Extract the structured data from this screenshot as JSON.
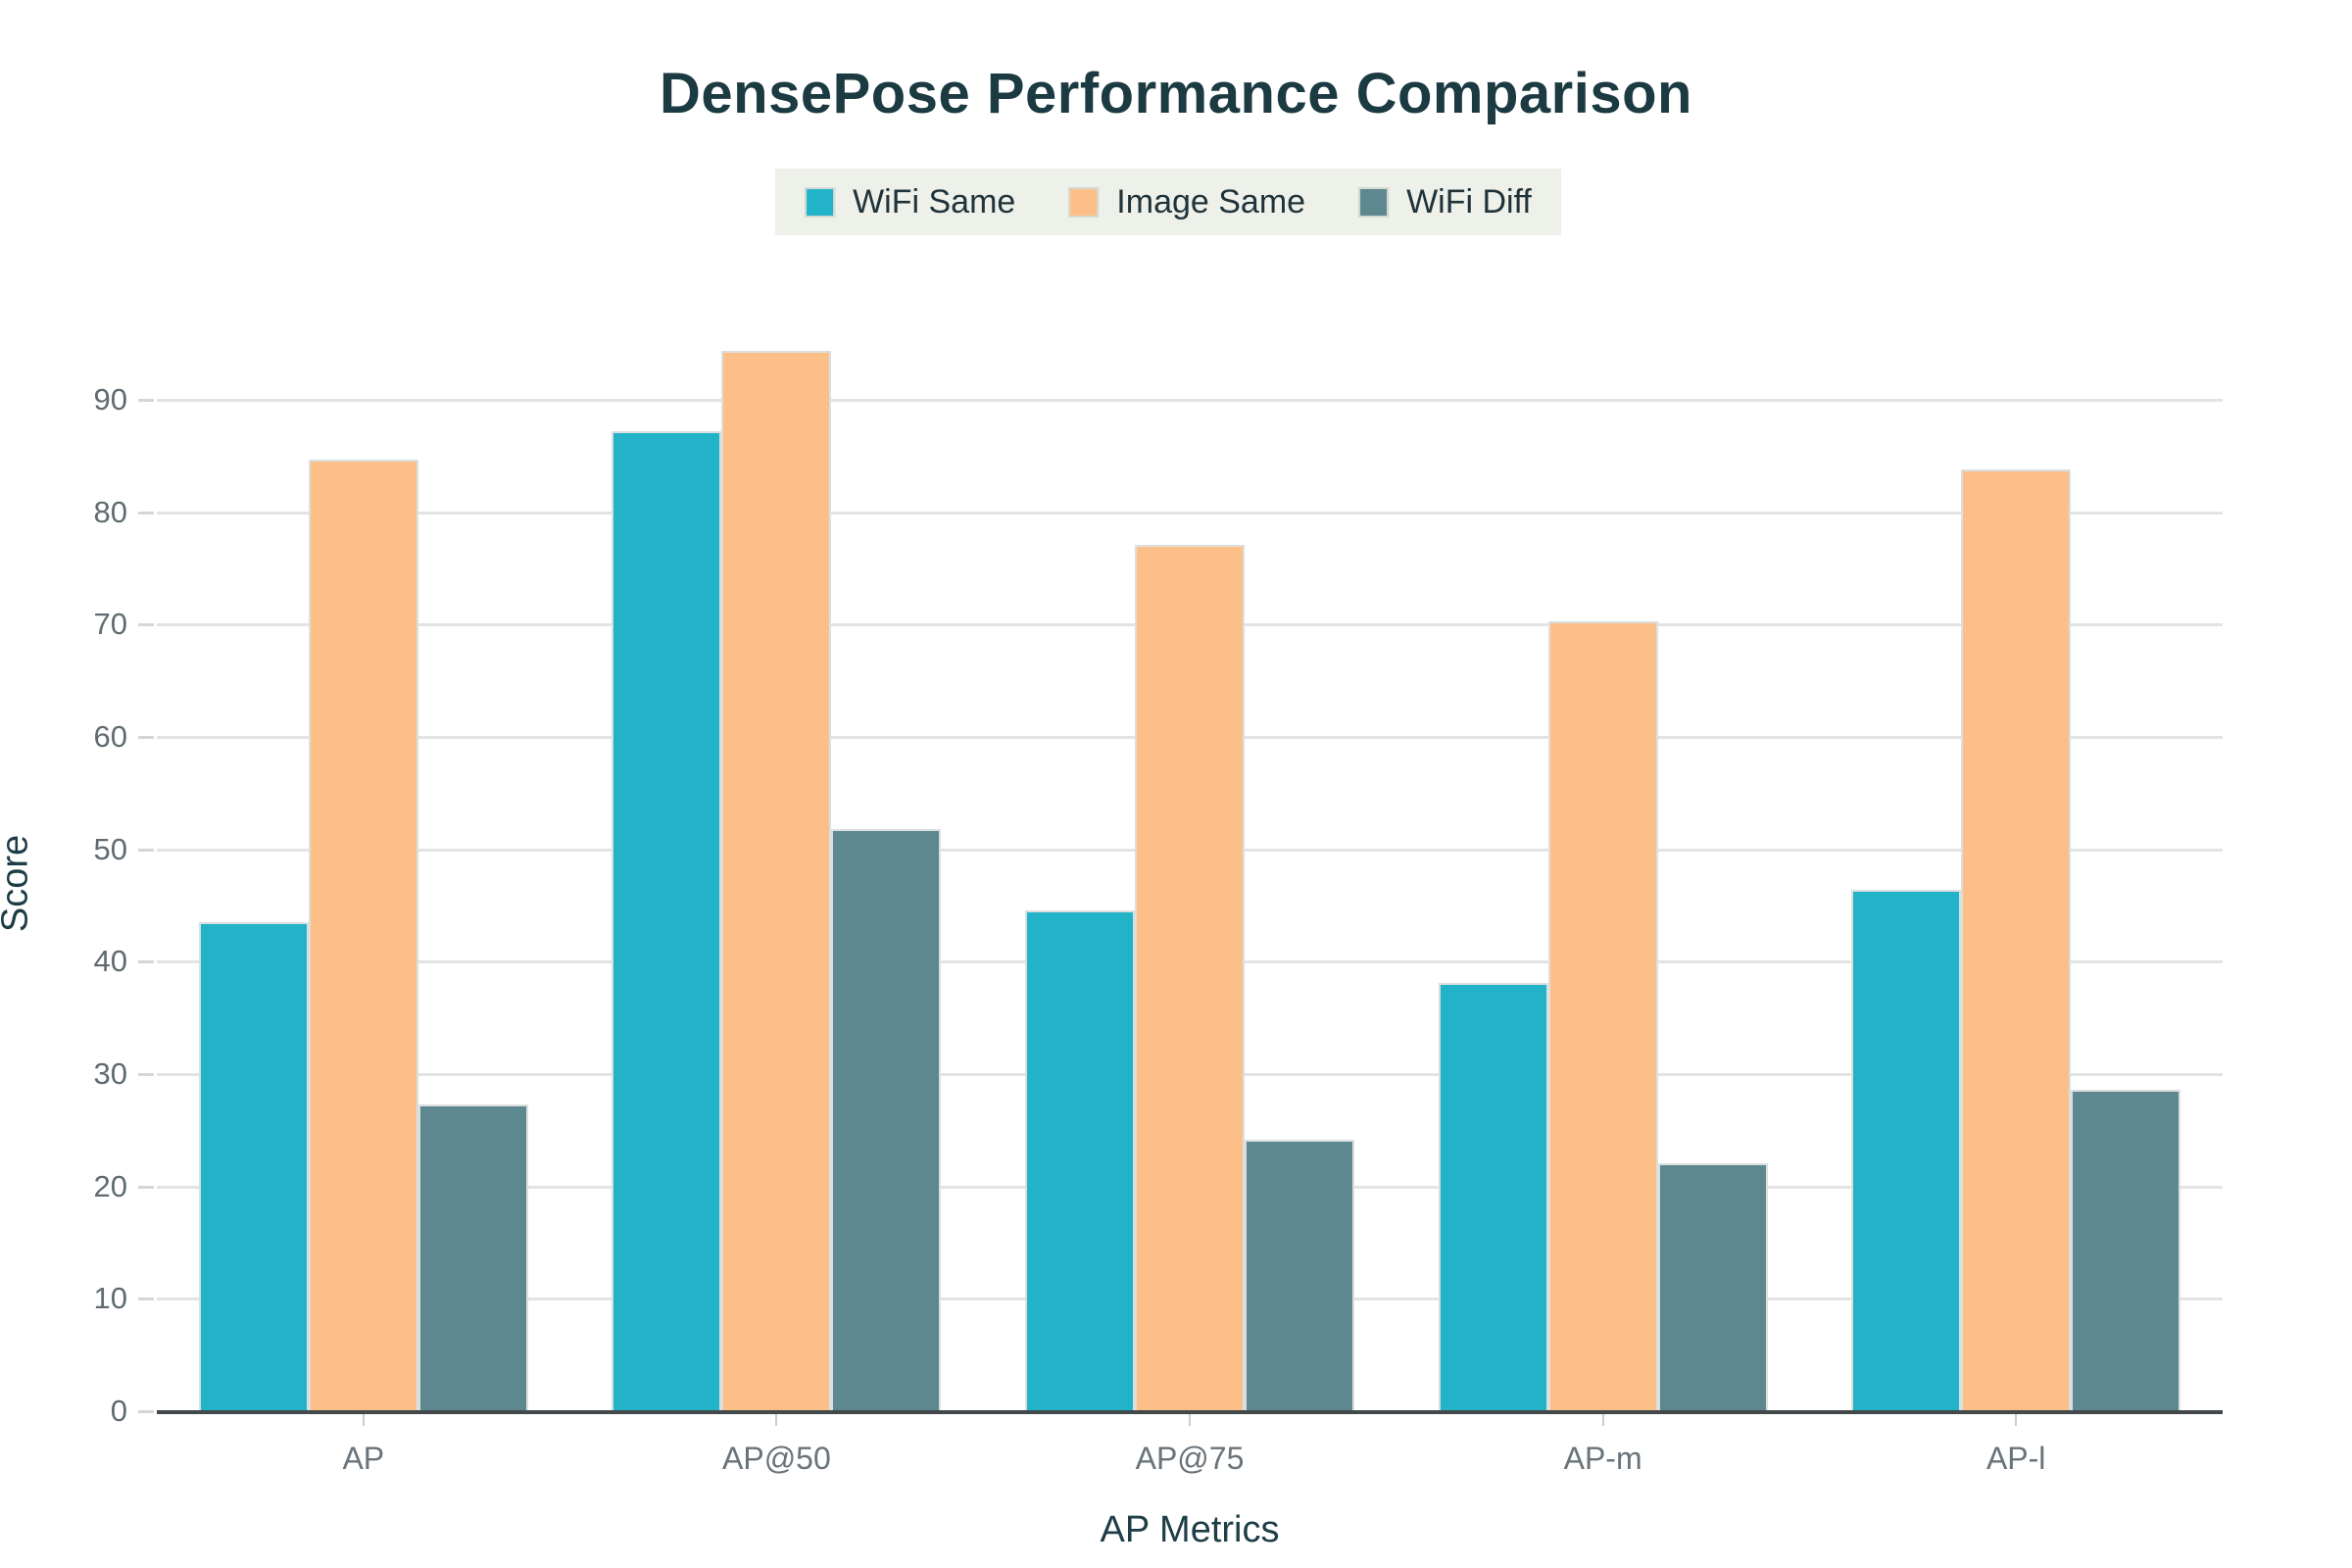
{
  "chart_data": {
    "type": "bar",
    "title": "DensePose Performance Comparison",
    "xlabel": "AP Metrics",
    "ylabel": "Score",
    "categories": [
      "AP",
      "AP@50",
      "AP@75",
      "AP-m",
      "AP-l"
    ],
    "series": [
      {
        "name": "WiFi Same",
        "color": "#22b3c9",
        "values": [
          43.5,
          87.2,
          44.6,
          38.1,
          46.4
        ]
      },
      {
        "name": "Image Same",
        "color": "#fcbf88",
        "values": [
          84.7,
          94.4,
          77.1,
          70.3,
          83.8
        ]
      },
      {
        "name": "WiFi Diff",
        "color": "#5d8890",
        "values": [
          27.3,
          51.8,
          24.2,
          22.1,
          28.6
        ]
      }
    ],
    "ylim": [
      0,
      95.6
    ],
    "yticks": [
      0,
      10,
      20,
      30,
      40,
      50,
      60,
      70,
      80,
      90
    ],
    "grid": true,
    "legend_position": "top-center",
    "colors": {
      "title_text": "#1c3a41",
      "axis_label_text": "#1d3e46",
      "tick_text": "#5f6b70",
      "legend_background": "#eef0ea",
      "gridline": "#e3e3e3",
      "baseline": "#43484b",
      "background": "#ffffff"
    }
  }
}
